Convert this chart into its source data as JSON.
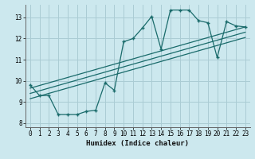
{
  "title": "",
  "xlabel": "Humidex (Indice chaleur)",
  "ylabel": "",
  "bg_color": "#cce8ee",
  "grid_color": "#aaccd4",
  "line_color": "#1a6b6b",
  "xlim": [
    -0.5,
    23.5
  ],
  "ylim": [
    7.8,
    13.6
  ],
  "xticks": [
    0,
    1,
    2,
    3,
    4,
    5,
    6,
    7,
    8,
    9,
    10,
    11,
    12,
    13,
    14,
    15,
    16,
    17,
    18,
    19,
    20,
    21,
    22,
    23
  ],
  "yticks": [
    8,
    9,
    10,
    11,
    12,
    13
  ],
  "main_x": [
    0,
    1,
    2,
    3,
    4,
    5,
    6,
    7,
    8,
    9,
    10,
    11,
    12,
    13,
    14,
    15,
    16,
    17,
    18,
    19,
    20,
    21,
    22,
    23
  ],
  "main_y": [
    9.8,
    9.3,
    9.3,
    8.4,
    8.4,
    8.4,
    8.55,
    8.6,
    9.9,
    9.55,
    11.85,
    12.0,
    12.5,
    13.05,
    11.5,
    13.35,
    13.35,
    13.35,
    12.85,
    12.75,
    11.1,
    12.8,
    12.6,
    12.55
  ],
  "trend1_x": [
    0,
    23
  ],
  "trend1_y": [
    9.65,
    12.55
  ],
  "trend2_x": [
    0,
    23
  ],
  "trend2_y": [
    9.4,
    12.3
  ],
  "trend3_x": [
    0,
    23
  ],
  "trend3_y": [
    9.15,
    12.05
  ]
}
